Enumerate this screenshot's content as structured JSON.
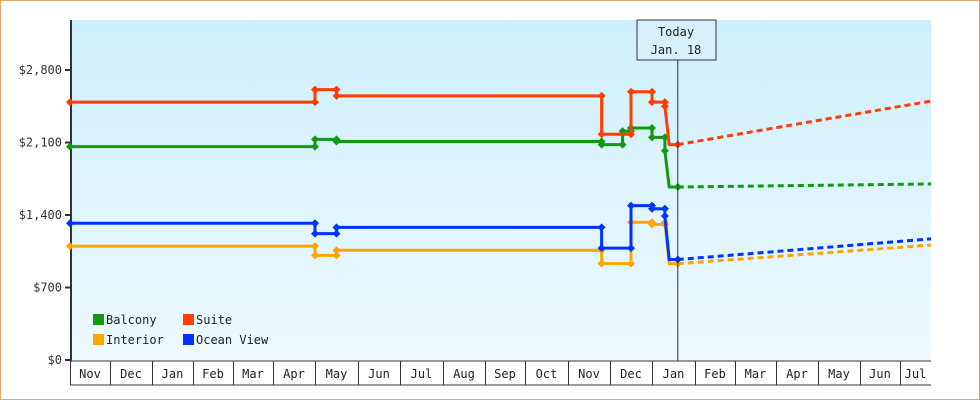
{
  "chart_data": {
    "type": "line",
    "title": "",
    "xlabel": "",
    "ylabel": "",
    "ylim": [
      0,
      3250
    ],
    "yticks": [
      {
        "label": "$0",
        "value": 0
      },
      {
        "label": "$700",
        "value": 700
      },
      {
        "label": "$1,400",
        "value": 1400
      },
      {
        "label": "$2,100",
        "value": 2100
      },
      {
        "label": "$2,800",
        "value": 2800
      }
    ],
    "x_categories": [
      "Nov",
      "Dec",
      "Jan",
      "Feb",
      "Mar",
      "Apr",
      "May",
      "Jun",
      "Jul",
      "Aug",
      "Sep",
      "Oct",
      "Nov",
      "Dec",
      "Jan",
      "Feb",
      "Mar",
      "Apr",
      "May",
      "Jun",
      "Jul"
    ],
    "annotation": {
      "line1": "Today",
      "line2": "Jan. 18"
    },
    "grid": false,
    "legend_position": "bottom-left inside",
    "series": [
      {
        "name": "Balcony",
        "color": "#119911",
        "historical": [
          [
            0,
            2060
          ],
          [
            6.0,
            2060
          ],
          [
            6.0,
            2130
          ],
          [
            6.5,
            2130
          ],
          [
            6.5,
            2110
          ],
          [
            12.8,
            2110
          ],
          [
            12.8,
            2080
          ],
          [
            13.3,
            2080
          ],
          [
            13.3,
            2210
          ],
          [
            13.5,
            2210
          ],
          [
            13.5,
            2240
          ],
          [
            14.0,
            2240
          ],
          [
            14.0,
            2150
          ],
          [
            14.3,
            2150
          ],
          [
            14.3,
            2020
          ],
          [
            14.4,
            1670
          ],
          [
            14.6,
            1670
          ]
        ],
        "forecast": [
          [
            14.6,
            1670
          ],
          [
            21.0,
            1700
          ]
        ]
      },
      {
        "name": "Suite",
        "color": "#ff3d00",
        "historical": [
          [
            0,
            2490
          ],
          [
            6.0,
            2490
          ],
          [
            6.0,
            2610
          ],
          [
            6.5,
            2610
          ],
          [
            6.5,
            2550
          ],
          [
            12.8,
            2550
          ],
          [
            12.8,
            2180
          ],
          [
            13.5,
            2180
          ],
          [
            13.5,
            2590
          ],
          [
            14.0,
            2590
          ],
          [
            14.0,
            2490
          ],
          [
            14.3,
            2490
          ],
          [
            14.3,
            2450
          ],
          [
            14.4,
            2080
          ],
          [
            14.6,
            2080
          ]
        ],
        "forecast": [
          [
            14.6,
            2080
          ],
          [
            21.0,
            2500
          ]
        ]
      },
      {
        "name": "Interior",
        "color": "#ffa500",
        "historical": [
          [
            0,
            1100
          ],
          [
            6.0,
            1100
          ],
          [
            6.0,
            1010
          ],
          [
            6.5,
            1010
          ],
          [
            6.5,
            1060
          ],
          [
            12.8,
            1060
          ],
          [
            12.8,
            930
          ],
          [
            13.5,
            930
          ],
          [
            13.5,
            1330
          ],
          [
            14.0,
            1330
          ],
          [
            14.0,
            1310
          ],
          [
            14.3,
            1310
          ],
          [
            14.3,
            1330
          ],
          [
            14.4,
            930
          ],
          [
            14.6,
            930
          ]
        ],
        "forecast": [
          [
            14.6,
            930
          ],
          [
            21.0,
            1110
          ]
        ]
      },
      {
        "name": "Ocean View",
        "color": "#0033ff",
        "historical": [
          [
            0,
            1320
          ],
          [
            6.0,
            1320
          ],
          [
            6.0,
            1220
          ],
          [
            6.5,
            1220
          ],
          [
            6.5,
            1280
          ],
          [
            12.8,
            1280
          ],
          [
            12.8,
            1080
          ],
          [
            13.5,
            1080
          ],
          [
            13.5,
            1490
          ],
          [
            14.0,
            1490
          ],
          [
            14.0,
            1460
          ],
          [
            14.3,
            1460
          ],
          [
            14.3,
            1390
          ],
          [
            14.4,
            970
          ],
          [
            14.6,
            970
          ]
        ],
        "forecast": [
          [
            14.6,
            970
          ],
          [
            21.0,
            1170
          ]
        ]
      }
    ]
  },
  "legend": [
    {
      "label": "Balcony",
      "color": "#119911"
    },
    {
      "label": "Suite",
      "color": "#ff3d00"
    },
    {
      "label": "Interior",
      "color": "#ffa500"
    },
    {
      "label": "Ocean View",
      "color": "#0033ff"
    }
  ],
  "today": {
    "line1": "Today",
    "line2": "Jan. 18"
  }
}
